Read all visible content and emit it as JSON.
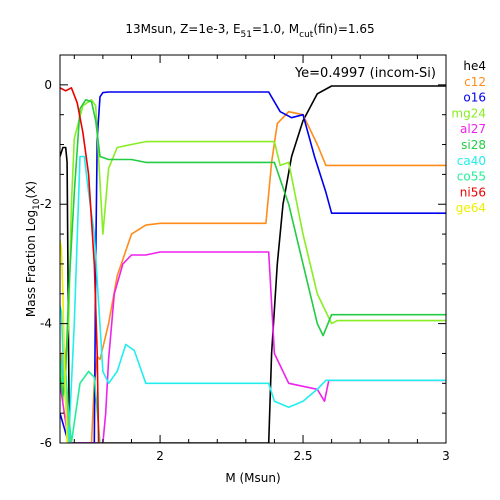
{
  "chart_data": {
    "type": "line",
    "title": "13Msun, Z=1e-3, E",
    "title_sub": "51",
    "title_tail": "=1.0, M",
    "title_sub2": "cut",
    "title_end": "(fin)=1.65",
    "xlabel": "M (Msun)",
    "ylabel_main": "Mass Fraction Log",
    "ylabel_sub": "10",
    "ylabel_end": "(X)",
    "annotation": "Ye=0.4997 (incom-Si)",
    "xlim": [
      1.65,
      3.0
    ],
    "ylim": [
      -6,
      0.5
    ],
    "x_ticks": [
      "2",
      "2.5",
      "3"
    ],
    "y_ticks": [
      "0",
      "-2",
      "-4",
      "-6"
    ],
    "legend_position": "right-outside",
    "series": [
      {
        "name": "he4",
        "color": "#000000",
        "points": [
          [
            1.65,
            -1.2
          ],
          [
            1.66,
            -1.05
          ],
          [
            1.67,
            -1.05
          ],
          [
            1.675,
            -1.3
          ],
          [
            1.68,
            -4.5
          ],
          [
            1.683,
            -6.0
          ],
          [
            2.38,
            -6.0
          ],
          [
            2.39,
            -4.5
          ],
          [
            2.41,
            -3.0
          ],
          [
            2.43,
            -2.0
          ],
          [
            2.46,
            -1.2
          ],
          [
            2.5,
            -0.6
          ],
          [
            2.55,
            -0.15
          ],
          [
            2.6,
            -0.02
          ],
          [
            3.0,
            -0.02
          ]
        ]
      },
      {
        "name": "c12",
        "color": "#ff8c1a",
        "points": [
          [
            1.65,
            -4.6
          ],
          [
            1.655,
            -4.5
          ],
          [
            1.66,
            -5.2
          ],
          [
            1.665,
            -4.4
          ],
          [
            1.67,
            -4.9
          ],
          [
            1.685,
            -6.0
          ],
          [
            1.76,
            -6.0
          ],
          [
            1.77,
            -5.0
          ],
          [
            1.78,
            -4.55
          ],
          [
            1.79,
            -4.6
          ],
          [
            1.82,
            -4.0
          ],
          [
            1.85,
            -3.2
          ],
          [
            1.9,
            -2.5
          ],
          [
            1.95,
            -2.35
          ],
          [
            2.0,
            -2.32
          ],
          [
            2.37,
            -2.32
          ],
          [
            2.39,
            -1.3
          ],
          [
            2.41,
            -0.65
          ],
          [
            2.45,
            -0.45
          ],
          [
            2.5,
            -0.5
          ],
          [
            2.55,
            -1.0
          ],
          [
            2.58,
            -1.35
          ],
          [
            3.0,
            -1.35
          ]
        ]
      },
      {
        "name": "o16",
        "color": "#0000ee",
        "points": [
          [
            1.65,
            -5.5
          ],
          [
            1.68,
            -6.0
          ],
          [
            1.77,
            -6.0
          ],
          [
            1.775,
            -3.0
          ],
          [
            1.78,
            -0.9
          ],
          [
            1.79,
            -0.2
          ],
          [
            1.8,
            -0.13
          ],
          [
            1.82,
            -0.12
          ],
          [
            2.38,
            -0.12
          ],
          [
            2.42,
            -0.45
          ],
          [
            2.46,
            -0.55
          ],
          [
            2.5,
            -0.5
          ],
          [
            2.54,
            -1.2
          ],
          [
            2.58,
            -1.8
          ],
          [
            2.6,
            -2.15
          ],
          [
            3.0,
            -2.15
          ]
        ]
      },
      {
        "name": "mg24",
        "color": "#88ee22",
        "points": [
          [
            1.65,
            -4.7
          ],
          [
            1.66,
            -5.3
          ],
          [
            1.665,
            -4.9
          ],
          [
            1.68,
            -4.0
          ],
          [
            1.69,
            -2.0
          ],
          [
            1.7,
            -0.9
          ],
          [
            1.73,
            -0.35
          ],
          [
            1.76,
            -0.25
          ],
          [
            1.775,
            -0.35
          ],
          [
            1.8,
            -2.5
          ],
          [
            1.82,
            -1.4
          ],
          [
            1.85,
            -1.05
          ],
          [
            1.9,
            -1.0
          ],
          [
            1.95,
            -0.95
          ],
          [
            2.4,
            -0.95
          ],
          [
            2.42,
            -1.35
          ],
          [
            2.45,
            -1.3
          ],
          [
            2.5,
            -2.5
          ],
          [
            2.55,
            -3.5
          ],
          [
            2.6,
            -4.0
          ],
          [
            2.62,
            -3.95
          ],
          [
            3.0,
            -3.95
          ]
        ]
      },
      {
        "name": "al27",
        "color": "#ee22ee",
        "points": [
          [
            1.65,
            -5.0
          ],
          [
            1.68,
            -6.0
          ],
          [
            1.8,
            -6.0
          ],
          [
            1.81,
            -5.5
          ],
          [
            1.82,
            -4.6
          ],
          [
            1.84,
            -3.5
          ],
          [
            1.87,
            -3.0
          ],
          [
            1.9,
            -2.85
          ],
          [
            1.95,
            -2.85
          ],
          [
            2.0,
            -2.8
          ],
          [
            2.38,
            -2.8
          ],
          [
            2.4,
            -4.5
          ],
          [
            2.45,
            -5.0
          ],
          [
            2.5,
            -5.05
          ],
          [
            2.55,
            -5.1
          ],
          [
            2.575,
            -5.3
          ],
          [
            2.59,
            -4.95
          ],
          [
            3.0,
            -4.95
          ]
        ]
      },
      {
        "name": "si28",
        "color": "#22cc44",
        "points": [
          [
            1.65,
            -4.9
          ],
          [
            1.66,
            -5.2
          ],
          [
            1.67,
            -4.8
          ],
          [
            1.68,
            -3.5
          ],
          [
            1.7,
            -1.8
          ],
          [
            1.72,
            -0.4
          ],
          [
            1.74,
            -0.25
          ],
          [
            1.76,
            -0.28
          ],
          [
            1.775,
            -0.6
          ],
          [
            1.79,
            -1.2
          ],
          [
            1.82,
            -1.25
          ],
          [
            1.9,
            -1.25
          ],
          [
            1.95,
            -1.3
          ],
          [
            2.4,
            -1.3
          ],
          [
            2.45,
            -2.0
          ],
          [
            2.5,
            -3.0
          ],
          [
            2.55,
            -4.0
          ],
          [
            2.57,
            -4.2
          ],
          [
            2.6,
            -3.85
          ],
          [
            3.0,
            -3.85
          ]
        ]
      },
      {
        "name": "ca40",
        "color": "#22eeee",
        "points": [
          [
            1.65,
            -3.7
          ],
          [
            1.655,
            -3.8
          ],
          [
            1.66,
            -4.5
          ],
          [
            1.665,
            -5.0
          ],
          [
            1.68,
            -6.0
          ],
          [
            1.7,
            -4.0
          ],
          [
            1.72,
            -1.2
          ],
          [
            1.735,
            -1.2
          ],
          [
            1.75,
            -1.8
          ],
          [
            1.77,
            -2.5
          ],
          [
            1.8,
            -4.8
          ],
          [
            1.82,
            -5.0
          ],
          [
            1.85,
            -4.8
          ],
          [
            1.88,
            -4.35
          ],
          [
            1.91,
            -4.45
          ],
          [
            1.95,
            -5.0
          ],
          [
            2.38,
            -5.0
          ],
          [
            2.4,
            -5.3
          ],
          [
            2.45,
            -5.4
          ],
          [
            2.5,
            -5.3
          ],
          [
            2.55,
            -5.1
          ],
          [
            2.58,
            -4.95
          ],
          [
            3.0,
            -4.95
          ]
        ]
      },
      {
        "name": "co55",
        "color": "#22ee99",
        "points": [
          [
            1.65,
            -4.5
          ],
          [
            1.66,
            -5.0
          ],
          [
            1.67,
            -4.8
          ],
          [
            1.68,
            -5.5
          ],
          [
            1.69,
            -6.0
          ],
          [
            1.72,
            -5.0
          ],
          [
            1.75,
            -4.8
          ],
          [
            1.77,
            -4.9
          ],
          [
            1.79,
            -6.0
          ]
        ]
      },
      {
        "name": "ni56",
        "color": "#ee0000",
        "points": [
          [
            1.65,
            -0.05
          ],
          [
            1.67,
            -0.1
          ],
          [
            1.69,
            -0.05
          ],
          [
            1.71,
            -0.3
          ],
          [
            1.73,
            -0.8
          ],
          [
            1.75,
            -1.5
          ],
          [
            1.77,
            -3.0
          ],
          [
            1.78,
            -4.5
          ],
          [
            1.785,
            -6.0
          ]
        ]
      },
      {
        "name": "ge64",
        "color": "#eeee00",
        "points": [
          [
            1.65,
            -2.6
          ],
          [
            1.655,
            -2.75
          ],
          [
            1.66,
            -3.5
          ],
          [
            1.665,
            -4.5
          ],
          [
            1.675,
            -6.0
          ]
        ]
      }
    ]
  }
}
